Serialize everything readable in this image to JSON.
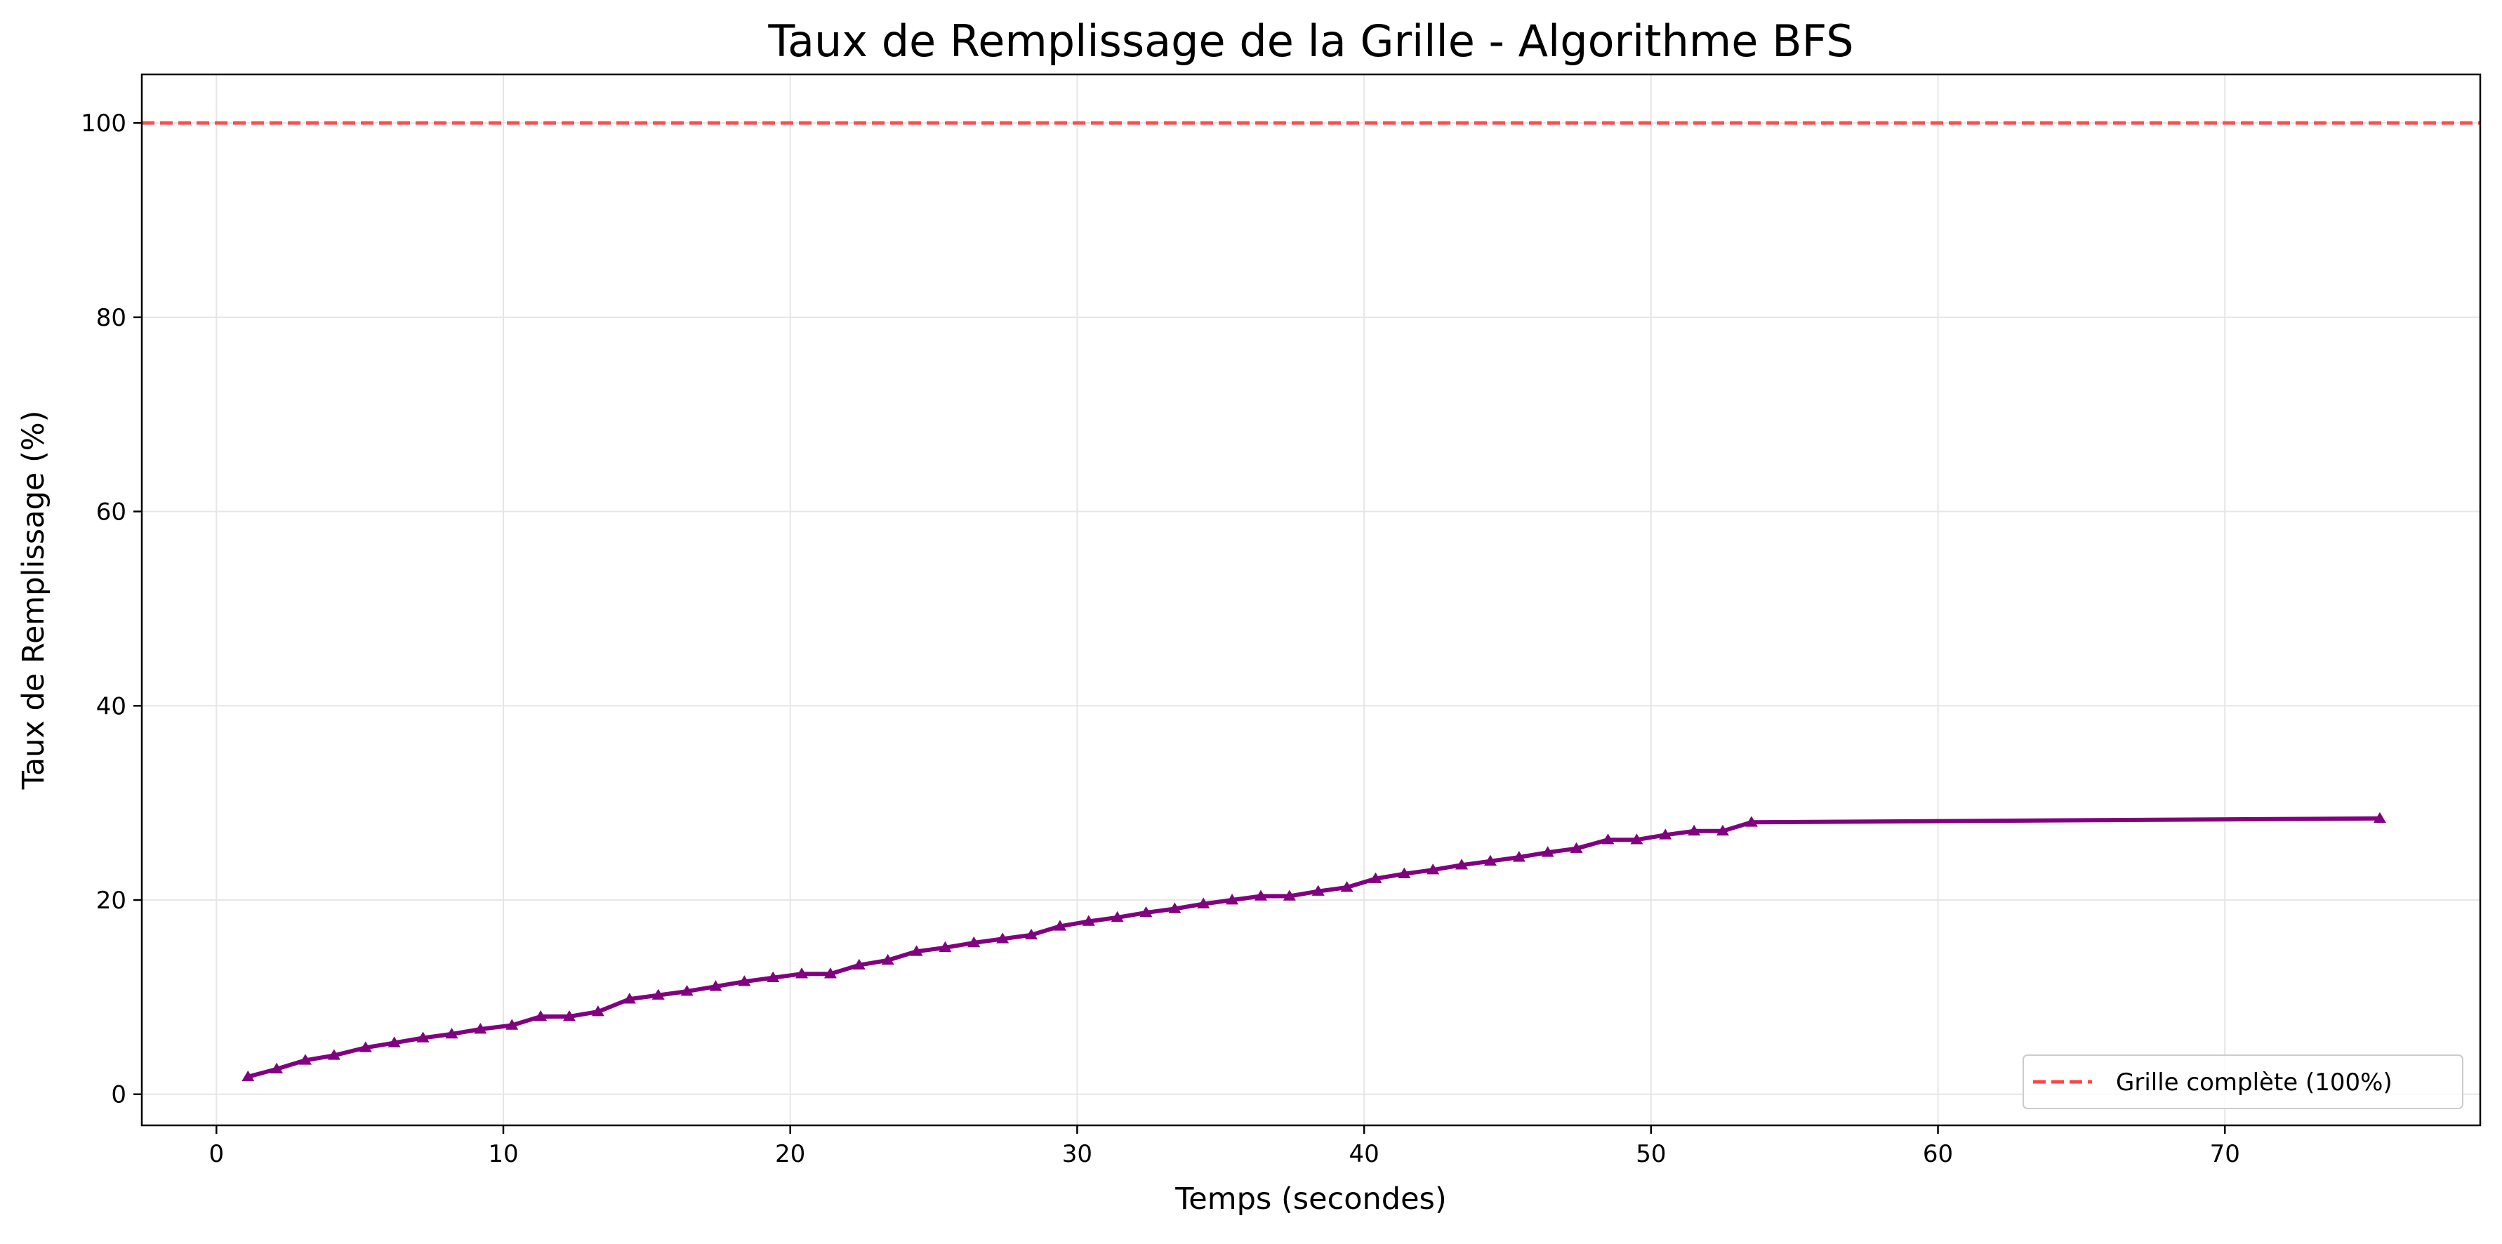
{
  "chart_data": {
    "type": "line",
    "title": "Taux de Remplissage de la Grille - Algorithme BFS",
    "xlabel": "Temps (secondes)",
    "ylabel": "Taux de Remplissage (%)",
    "xlim": [
      -2.6,
      78.9
    ],
    "ylim": [
      -3.2,
      105
    ],
    "xticks": [
      0,
      10,
      20,
      30,
      40,
      50,
      60,
      70
    ],
    "yticks": [
      0,
      20,
      40,
      60,
      80,
      100
    ],
    "grid": true,
    "legend_position": "lower-right",
    "colors": {
      "series": "#800080",
      "reference": "#ff4444",
      "grid": "#e6e6e6"
    },
    "reference_line": {
      "y": 100,
      "label": "Grille complète (100%)"
    },
    "series": [
      {
        "x": [
          1.1,
          2.1,
          3.1,
          4.1,
          5.2,
          6.2,
          7.2,
          8.2,
          9.2,
          10.3,
          11.3,
          12.3,
          13.3,
          14.4,
          15.4,
          16.4,
          17.4,
          18.4,
          19.4,
          20.4,
          21.4,
          22.4,
          23.4,
          24.4,
          25.4,
          26.4,
          27.4,
          28.4,
          29.4,
          30.4,
          31.4,
          32.4,
          33.4,
          34.4,
          35.4,
          36.4,
          37.4,
          38.4,
          39.4,
          40.4,
          41.4,
          42.4,
          43.4,
          44.4,
          45.4,
          46.4,
          47.4,
          48.5,
          49.5,
          50.5,
          51.5,
          52.5,
          53.5,
          75.4
        ],
        "values": [
          1.8,
          2.6,
          3.5,
          4.0,
          4.8,
          5.3,
          5.8,
          6.2,
          6.7,
          7.1,
          8.0,
          8.0,
          8.5,
          9.8,
          10.2,
          10.6,
          11.1,
          11.6,
          12.0,
          12.4,
          12.4,
          13.3,
          13.8,
          14.7,
          15.1,
          15.6,
          16.0,
          16.4,
          17.3,
          17.8,
          18.2,
          18.7,
          19.1,
          19.6,
          20.0,
          20.4,
          20.4,
          20.9,
          21.3,
          22.2,
          22.7,
          23.1,
          23.6,
          24.0,
          24.4,
          24.9,
          25.3,
          26.2,
          26.2,
          26.7,
          27.1,
          27.1,
          28.0,
          28.4
        ]
      }
    ]
  }
}
